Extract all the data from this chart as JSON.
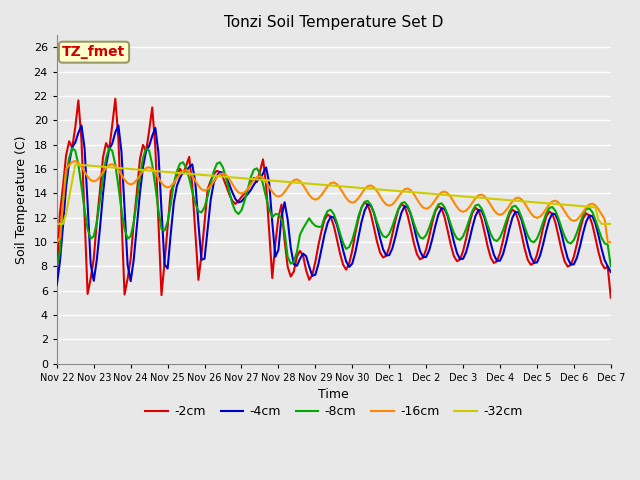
{
  "title": "Tonzi Soil Temperature Set D",
  "xlabel": "Time",
  "ylabel": "Soil Temperature (C)",
  "ylim": [
    0,
    27
  ],
  "yticks": [
    0,
    2,
    4,
    6,
    8,
    10,
    12,
    14,
    16,
    18,
    20,
    22,
    24,
    26
  ],
  "x_labels": [
    "Nov 22",
    "Nov 23",
    "Nov 24",
    "Nov 25",
    "Nov 26",
    "Nov 27",
    "Nov 28",
    "Nov 29",
    "Nov 30",
    "Dec 1",
    "Dec 2",
    "Dec 3",
    "Dec 4",
    "Dec 5",
    "Dec 6",
    "Dec 7"
  ],
  "annotation_text": "TZ_fmet",
  "annotation_color": "#cc0000",
  "annotation_bg": "#ffffcc",
  "annotation_border": "#999966",
  "colors": {
    "-2cm": "#dd0000",
    "-4cm": "#0000cc",
    "-8cm": "#00aa00",
    "-16cm": "#ff8800",
    "-32cm": "#cccc00"
  },
  "line_width": 1.5,
  "fig_bg": "#e8e8e8",
  "plot_bg": "#e8e8e8",
  "grid_color": "#ffffff",
  "figsize": [
    6.4,
    4.8
  ],
  "dpi": 100
}
